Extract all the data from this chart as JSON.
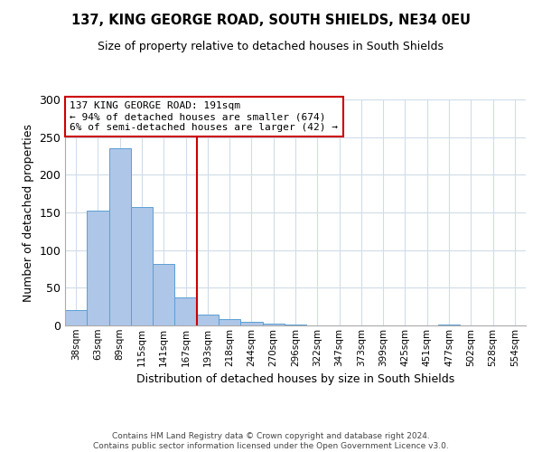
{
  "title": "137, KING GEORGE ROAD, SOUTH SHIELDS, NE34 0EU",
  "subtitle": "Size of property relative to detached houses in South Shields",
  "xlabel": "Distribution of detached houses by size in South Shields",
  "ylabel": "Number of detached properties",
  "footer_line1": "Contains HM Land Registry data © Crown copyright and database right 2024.",
  "footer_line2": "Contains public sector information licensed under the Open Government Licence v3.0.",
  "bin_labels": [
    "38sqm",
    "63sqm",
    "89sqm",
    "115sqm",
    "141sqm",
    "167sqm",
    "193sqm",
    "218sqm",
    "244sqm",
    "270sqm",
    "296sqm",
    "322sqm",
    "347sqm",
    "373sqm",
    "399sqm",
    "425sqm",
    "451sqm",
    "477sqm",
    "502sqm",
    "528sqm",
    "554sqm"
  ],
  "bar_heights": [
    20,
    152,
    235,
    157,
    82,
    37,
    15,
    9,
    5,
    2,
    1,
    0,
    0,
    0,
    0,
    0,
    0,
    1,
    0,
    0,
    0
  ],
  "bar_color": "#aec6e8",
  "bar_edge_color": "#5a9fd4",
  "vline_x": 6,
  "vline_color": "#cc0000",
  "annotation_line1": "137 KING GEORGE ROAD: 191sqm",
  "annotation_line2": "← 94% of detached houses are smaller (674)",
  "annotation_line3": "6% of semi-detached houses are larger (42) →",
  "annotation_box_color": "#cc0000",
  "ylim": [
    0,
    300
  ],
  "yticks": [
    0,
    50,
    100,
    150,
    200,
    250,
    300
  ],
  "background_color": "#ffffff",
  "grid_color": "#d0dce8"
}
